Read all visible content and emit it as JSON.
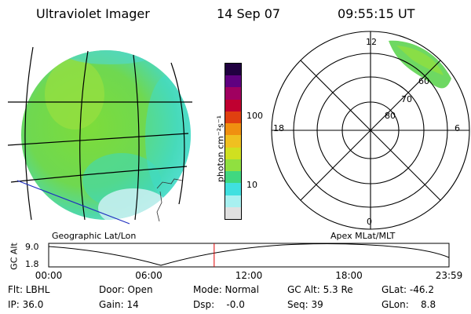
{
  "header": {
    "instrument": "Ultraviolet Imager",
    "date": "14 Sep 07",
    "time": "09:55:15 UT"
  },
  "colorbar": {
    "unit_label": "photon cm⁻²s⁻¹",
    "tick_100": "100",
    "tick_10": "10",
    "colors": [
      "#e0e0e0",
      "#a8f0f0",
      "#40e0e0",
      "#40d880",
      "#90e040",
      "#d0e020",
      "#f0c020",
      "#f09010",
      "#e04010",
      "#c00030",
      "#a00060",
      "#600080",
      "#200040"
    ]
  },
  "geo_panel": {
    "label": "Geographic Lat/Lon"
  },
  "polar_panel": {
    "label": "Apex MLat/MLT",
    "mlt_12": "12",
    "mlt_18": "18",
    "mlt_6": "6",
    "mlt_0": "0",
    "lat_60": "60",
    "lat_70": "70",
    "lat_80": "80"
  },
  "altitude_plot": {
    "ylabel": "GC Alt",
    "y_top": "9.0",
    "y_bottom": "1.8",
    "x_ticks": [
      "00:00",
      "06:00",
      "12:00",
      "18:00",
      "23:59"
    ],
    "marker_time": "09:55:15",
    "marker_color": "#e00000"
  },
  "status": {
    "flt": "Flt: LBHL",
    "ip": "IP: 36.0",
    "door": "Door: Open",
    "gain": "Gain: 14",
    "mode": "Mode: Normal",
    "dsp": "Dsp:    -0.0",
    "gc_alt": "GC Alt: 5.3 Re",
    "seq": "Seq: 39",
    "glat": "GLat: -46.2",
    "glon": "GLon:    8.8"
  }
}
